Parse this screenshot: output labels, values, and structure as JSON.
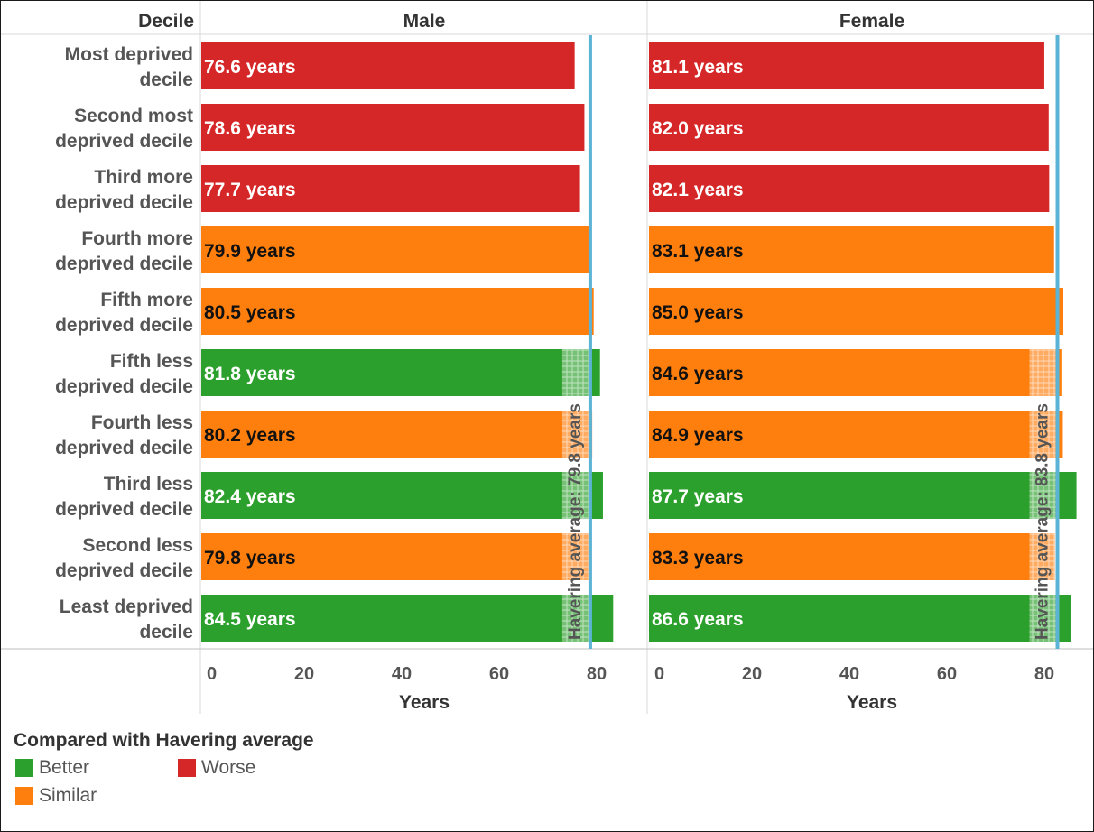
{
  "chart_data": {
    "type": "bar",
    "orientation": "horizontal",
    "row_header": "Decile",
    "categories": [
      [
        "Most deprived",
        "decile"
      ],
      [
        "Second most",
        "deprived decile"
      ],
      [
        "Third more",
        "deprived decile"
      ],
      [
        "Fourth more",
        "deprived decile"
      ],
      [
        "Fifth more",
        "deprived decile"
      ],
      [
        "Fifth less",
        "deprived decile"
      ],
      [
        "Fourth less",
        "deprived decile"
      ],
      [
        "Third less",
        "deprived decile"
      ],
      [
        "Second less",
        "deprived decile"
      ],
      [
        "Least deprived",
        "decile"
      ]
    ],
    "panels": [
      {
        "name": "Male",
        "values": [
          76.6,
          78.6,
          77.7,
          79.9,
          80.5,
          81.8,
          80.2,
          82.4,
          79.8,
          84.5
        ],
        "labels": [
          "76.6 years",
          "78.6 years",
          "77.7 years",
          "79.9 years",
          "80.5 years",
          "81.8 years",
          "80.2 years",
          "82.4 years",
          "79.8 years",
          "84.5 years"
        ],
        "comparison": [
          "Worse",
          "Worse",
          "Worse",
          "Similar",
          "Similar",
          "Better",
          "Similar",
          "Better",
          "Similar",
          "Better"
        ],
        "average": 79.8,
        "average_label": "Havering average: 79.8 years"
      },
      {
        "name": "Female",
        "values": [
          81.1,
          82.0,
          82.1,
          83.1,
          85.0,
          84.6,
          84.9,
          87.7,
          83.3,
          86.6
        ],
        "labels": [
          "81.1 years",
          "82.0 years",
          "82.1 years",
          "83.1 years",
          "85.0 years",
          "84.6 years",
          "84.9 years",
          "87.7 years",
          "83.3 years",
          "86.6 years"
        ],
        "comparison": [
          "Worse",
          "Worse",
          "Worse",
          "Similar",
          "Similar",
          "Similar",
          "Similar",
          "Better",
          "Similar",
          "Better"
        ],
        "average": 83.8,
        "average_label": "Havering average: 83.8 years"
      }
    ],
    "xlabel": "Years",
    "xlim": [
      0,
      90
    ],
    "xticks": [
      "0",
      "20",
      "40",
      "60",
      "80"
    ],
    "grid": false,
    "legend": {
      "title": "Compared with Havering average",
      "position": "bottom-left",
      "items": [
        {
          "label": "Better",
          "color": "#2ca02c"
        },
        {
          "label": "Worse",
          "color": "#d62728"
        },
        {
          "label": "Similar",
          "color": "#ff7f0e"
        }
      ]
    },
    "colors": {
      "Better": "#2ca02c",
      "Worse": "#d62728",
      "Similar": "#ff7f0e",
      "average_line": "#5bb3d6"
    }
  }
}
